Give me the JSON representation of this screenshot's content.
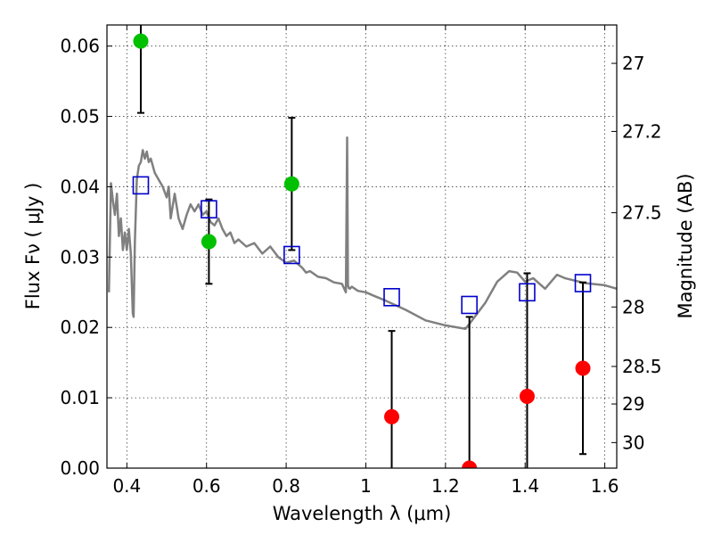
{
  "chart_data": {
    "type": "scatter",
    "xlabel": "Wavelength  λ (μm)",
    "ylabel": "Flux  Fν  ( μJy )",
    "y2label": "Magnitude (AB)",
    "xlim": [
      0.35,
      1.63
    ],
    "ylim": [
      0.0,
      0.063
    ],
    "grid": true,
    "legend": "none",
    "x_ticks": [
      {
        "value": 0.4,
        "label": "0.4"
      },
      {
        "value": 0.6,
        "label": "0.6"
      },
      {
        "value": 0.8,
        "label": "0.8"
      },
      {
        "value": 1.0,
        "label": "1"
      },
      {
        "value": 1.2,
        "label": "1.2"
      },
      {
        "value": 1.4,
        "label": "1.4"
      },
      {
        "value": 1.6,
        "label": "1.6"
      }
    ],
    "y_ticks": [
      {
        "value": 0.0,
        "label": "0.00"
      },
      {
        "value": 0.01,
        "label": "0.01"
      },
      {
        "value": 0.02,
        "label": "0.02"
      },
      {
        "value": 0.03,
        "label": "0.03"
      },
      {
        "value": 0.04,
        "label": "0.04"
      },
      {
        "value": 0.05,
        "label": "0.05"
      },
      {
        "value": 0.06,
        "label": "0.06"
      }
    ],
    "y2_ticks": [
      {
        "mag": 27.0,
        "label": "27"
      },
      {
        "mag": 27.2,
        "label": "27.2"
      },
      {
        "mag": 27.5,
        "label": "27.5"
      },
      {
        "mag": 28.0,
        "label": "28"
      },
      {
        "mag": 28.5,
        "label": "28.5"
      },
      {
        "mag": 29.0,
        "label": "29"
      },
      {
        "mag": 30.0,
        "label": "30"
      }
    ],
    "colors": {
      "model": "#808080",
      "detection": "#00c000",
      "nondetection": "#ff0000",
      "model_band": "#0000cc",
      "errorbar": "#000000"
    },
    "model_spectrum": {
      "x": [
        0.355,
        0.36,
        0.365,
        0.37,
        0.375,
        0.38,
        0.385,
        0.39,
        0.395,
        0.4,
        0.405,
        0.41,
        0.415,
        0.417,
        0.42,
        0.425,
        0.43,
        0.435,
        0.44,
        0.445,
        0.45,
        0.455,
        0.46,
        0.47,
        0.48,
        0.49,
        0.5,
        0.505,
        0.51,
        0.52,
        0.53,
        0.54,
        0.55,
        0.56,
        0.57,
        0.58,
        0.59,
        0.6,
        0.61,
        0.62,
        0.63,
        0.64,
        0.65,
        0.66,
        0.67,
        0.68,
        0.7,
        0.72,
        0.74,
        0.76,
        0.78,
        0.8,
        0.82,
        0.84,
        0.85,
        0.86,
        0.88,
        0.9,
        0.92,
        0.94,
        0.95,
        0.953,
        0.955,
        0.957,
        0.96,
        0.965,
        0.98,
        1.0,
        1.02,
        1.05,
        1.1,
        1.15,
        1.2,
        1.25,
        1.26,
        1.3,
        1.33,
        1.36,
        1.38,
        1.4,
        1.42,
        1.45,
        1.48,
        1.5,
        1.55,
        1.6,
        1.63
      ],
      "y": [
        0.025,
        0.0405,
        0.038,
        0.036,
        0.039,
        0.033,
        0.0355,
        0.031,
        0.0335,
        0.031,
        0.034,
        0.0305,
        0.022,
        0.0215,
        0.032,
        0.041,
        0.043,
        0.0435,
        0.0452,
        0.044,
        0.045,
        0.0435,
        0.044,
        0.042,
        0.041,
        0.04,
        0.0385,
        0.04,
        0.0355,
        0.039,
        0.0355,
        0.034,
        0.036,
        0.0375,
        0.0365,
        0.0375,
        0.036,
        0.0365,
        0.035,
        0.0345,
        0.0355,
        0.034,
        0.033,
        0.0335,
        0.032,
        0.0325,
        0.0315,
        0.032,
        0.0305,
        0.0315,
        0.03,
        0.0292,
        0.0295,
        0.0285,
        0.0278,
        0.028,
        0.0272,
        0.027,
        0.0264,
        0.0262,
        0.025,
        0.047,
        0.026,
        0.0256,
        0.0255,
        0.0258,
        0.0252,
        0.025,
        0.0245,
        0.0238,
        0.0225,
        0.021,
        0.0203,
        0.0198,
        0.0205,
        0.0235,
        0.0265,
        0.028,
        0.0278,
        0.0265,
        0.027,
        0.0255,
        0.0275,
        0.027,
        0.0263,
        0.026,
        0.0255
      ]
    },
    "detections": [
      {
        "x": 0.435,
        "y": 0.0607,
        "yerr_low": 0.0102,
        "yerr_high": 0.003
      },
      {
        "x": 0.606,
        "y": 0.0322,
        "yerr_low": 0.006,
        "yerr_high": 0.006
      },
      {
        "x": 0.814,
        "y": 0.0404,
        "yerr_low": 0.0094,
        "yerr_high": 0.0094
      }
    ],
    "non_detections": [
      {
        "x": 1.065,
        "y": 0.0073,
        "yerr_low": 0.008,
        "yerr_high": 0.0122
      },
      {
        "x": 1.26,
        "y": 0.0,
        "yerr_low": 0.001,
        "yerr_high": 0.0215
      },
      {
        "x": 1.405,
        "y": 0.0102,
        "yerr_low": 0.011,
        "yerr_high": 0.0175
      },
      {
        "x": 1.545,
        "y": 0.0142,
        "yerr_low": 0.0122,
        "yerr_high": 0.0122
      }
    ],
    "model_band_flux": [
      {
        "x": 0.435,
        "y": 0.0402
      },
      {
        "x": 0.606,
        "y": 0.0368
      },
      {
        "x": 0.814,
        "y": 0.0303
      },
      {
        "x": 1.065,
        "y": 0.0243
      },
      {
        "x": 1.26,
        "y": 0.0232
      },
      {
        "x": 1.405,
        "y": 0.025
      },
      {
        "x": 1.545,
        "y": 0.0263
      }
    ]
  }
}
